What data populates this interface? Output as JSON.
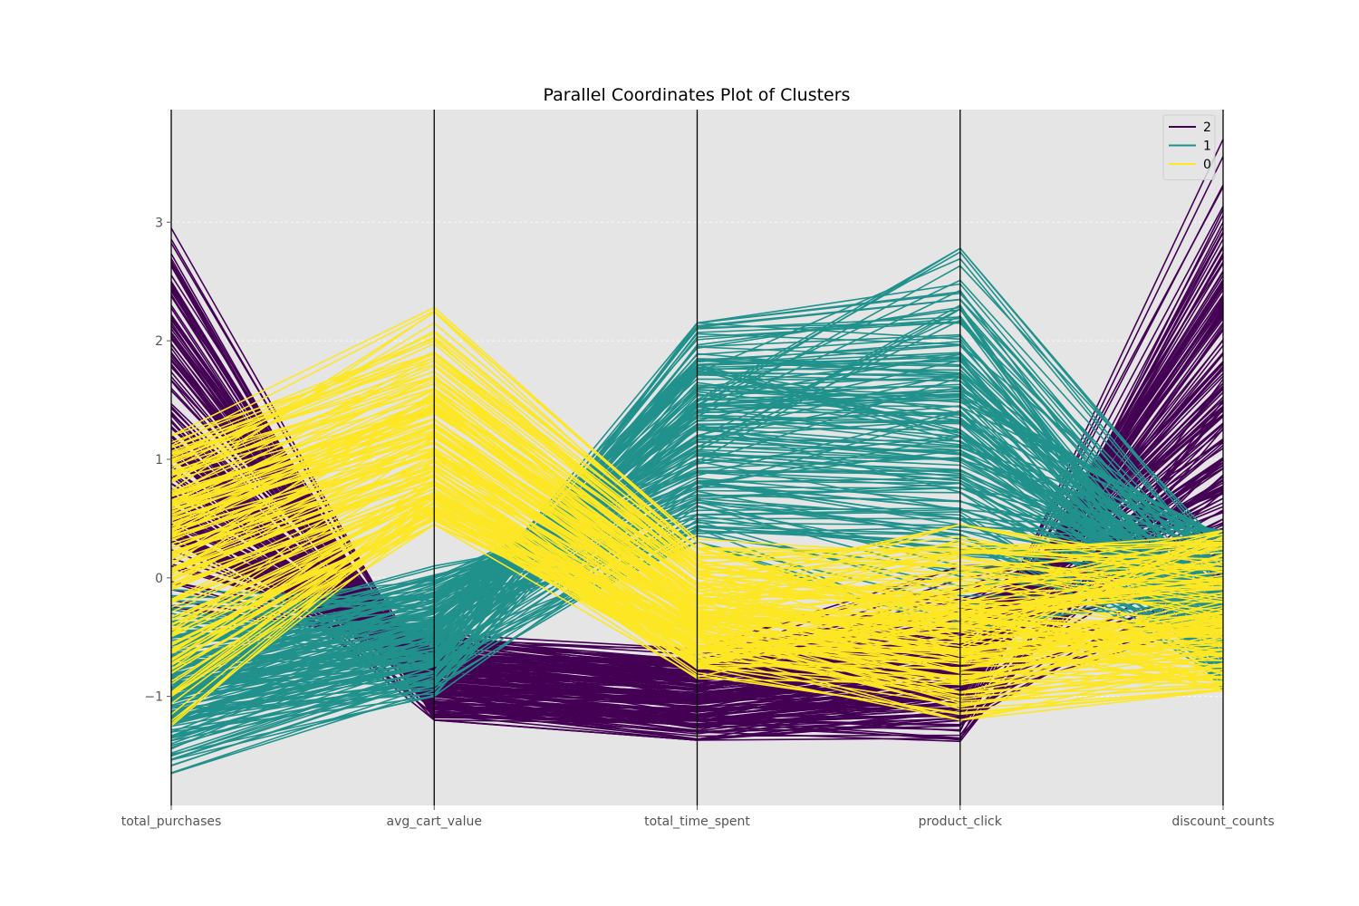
{
  "chart_data": {
    "type": "line",
    "subtype": "parallel-coordinates",
    "title": "Parallel Coordinates Plot of Clusters",
    "xlabel": "",
    "ylabel": "",
    "categories": [
      "total_purchases",
      "avg_cart_value",
      "total_time_spent",
      "product_click",
      "discount_counts"
    ],
    "yticks": [
      -1,
      0,
      1,
      2,
      3
    ],
    "ylim": [
      -1.92,
      3.95
    ],
    "grid": true,
    "legend": {
      "placement": "top-right",
      "entries": [
        "2",
        "1",
        "0"
      ]
    },
    "colors": {
      "2": "#440154",
      "1": "#21918c",
      "0": "#fde725",
      "axis": "#000000",
      "background": "#e5e5e5",
      "grid": "#ffffff"
    },
    "series": [
      {
        "name": "2",
        "color": "#440154",
        "approx_range": [
          [
            -0.25,
            2.95
          ],
          [
            -1.2,
            -0.45
          ],
          [
            -1.37,
            -0.6
          ],
          [
            -1.38,
            0.1
          ],
          [
            -0.35,
            3.7
          ]
        ],
        "representative_lines": [
          [
            2.95,
            -0.95,
            -1.2,
            -1.0,
            3.7
          ],
          [
            2.65,
            -1.15,
            -1.3,
            -1.25,
            3.0
          ],
          [
            2.5,
            -1.1,
            -1.25,
            -1.1,
            2.8
          ],
          [
            2.3,
            -1.05,
            -1.2,
            -0.95,
            2.55
          ],
          [
            2.1,
            -0.9,
            -1.1,
            -0.85,
            2.35
          ],
          [
            1.9,
            -0.85,
            -1.0,
            -0.8,
            2.1
          ],
          [
            1.6,
            -0.8,
            -0.95,
            -0.7,
            1.9
          ],
          [
            1.2,
            -0.75,
            -0.9,
            -0.6,
            1.7
          ],
          [
            0.95,
            -1.0,
            -1.3,
            -1.38,
            1.45
          ],
          [
            0.7,
            -0.65,
            -0.8,
            -0.55,
            1.25
          ],
          [
            0.5,
            -0.7,
            -0.85,
            -0.5,
            1.0
          ],
          [
            0.3,
            -0.6,
            -0.75,
            -0.45,
            0.8
          ],
          [
            0.1,
            -0.55,
            -0.7,
            -0.3,
            0.6
          ],
          [
            -0.1,
            -0.5,
            -0.65,
            -0.2,
            0.35
          ],
          [
            -0.25,
            -0.55,
            -0.6,
            0.1,
            0.15
          ],
          [
            0.6,
            -1.2,
            -1.37,
            -1.2,
            0.0
          ],
          [
            0.85,
            -0.95,
            -1.15,
            -0.9,
            -0.2
          ],
          [
            1.4,
            -1.1,
            -1.2,
            -1.05,
            -0.35
          ]
        ]
      },
      {
        "name": "1",
        "color": "#21918c",
        "approx_range": [
          [
            -1.65,
            -0.1
          ],
          [
            -1.0,
            0.1
          ],
          [
            0.3,
            2.15
          ],
          [
            -0.45,
            2.78
          ],
          [
            -0.95,
            0.4
          ]
        ],
        "representative_lines": [
          [
            -1.65,
            -0.95,
            1.5,
            2.78,
            0.15
          ],
          [
            -1.5,
            -0.8,
            2.15,
            2.4,
            -0.1
          ],
          [
            -1.4,
            -0.6,
            2.1,
            2.2,
            -0.5
          ],
          [
            -1.35,
            -0.7,
            1.95,
            2.05,
            -0.75
          ],
          [
            -1.2,
            -0.5,
            1.8,
            1.9,
            -0.3
          ],
          [
            -1.1,
            -0.9,
            1.6,
            1.7,
            -0.95
          ],
          [
            -1.0,
            -0.4,
            1.5,
            1.5,
            0.35
          ],
          [
            -0.95,
            -0.3,
            1.35,
            1.3,
            -0.6
          ],
          [
            -0.85,
            -0.2,
            1.2,
            1.1,
            0.2
          ],
          [
            -0.8,
            -0.55,
            1.05,
            0.95,
            -0.05
          ],
          [
            -0.7,
            -0.1,
            0.9,
            0.8,
            -0.45
          ],
          [
            -0.6,
            0.0,
            0.7,
            0.65,
            -0.25
          ],
          [
            -0.5,
            0.1,
            0.5,
            0.5,
            0.4
          ],
          [
            -0.45,
            -0.35,
            0.4,
            0.3,
            -0.75
          ],
          [
            -0.3,
            -0.75,
            0.3,
            -0.45,
            -0.1
          ],
          [
            -0.15,
            -0.25,
            1.1,
            2.3,
            -0.9
          ],
          [
            -1.3,
            -1.0,
            0.6,
            0.2,
            0.1
          ],
          [
            -0.9,
            -0.65,
            1.75,
            1.2,
            -0.55
          ]
        ]
      },
      {
        "name": "0",
        "color": "#fde725",
        "approx_range": [
          [
            -1.25,
            1.2
          ],
          [
            0.45,
            2.3
          ],
          [
            -0.85,
            0.35
          ],
          [
            -1.2,
            0.45
          ],
          [
            -0.95,
            0.4
          ]
        ],
        "representative_lines": [
          [
            1.2,
            2.28,
            0.3,
            -0.5,
            -0.95
          ],
          [
            1.1,
            2.0,
            0.2,
            0.25,
            0.3
          ],
          [
            1.0,
            1.8,
            0.1,
            -0.2,
            -0.9
          ],
          [
            0.9,
            1.6,
            0.0,
            -0.4,
            -0.7
          ],
          [
            0.7,
            1.45,
            -0.1,
            0.45,
            0.05
          ],
          [
            0.6,
            1.3,
            -0.2,
            -0.8,
            -0.85
          ],
          [
            0.5,
            1.2,
            -0.3,
            -0.6,
            0.35
          ],
          [
            0.35,
            1.05,
            -0.4,
            -0.3,
            -0.5
          ],
          [
            0.2,
            0.95,
            -0.5,
            -1.0,
            -0.9
          ],
          [
            0.05,
            0.85,
            -0.6,
            -0.7,
            -0.3
          ],
          [
            -0.1,
            0.8,
            -0.7,
            -0.5,
            0.2
          ],
          [
            -0.25,
            0.7,
            -0.8,
            -1.15,
            -0.95
          ],
          [
            -0.4,
            0.6,
            -0.85,
            -0.9,
            -0.6
          ],
          [
            -0.6,
            0.55,
            -0.75,
            -0.25,
            -0.05
          ],
          [
            -0.8,
            0.5,
            -0.65,
            -1.2,
            -0.8
          ],
          [
            -1.0,
            0.45,
            -0.55,
            0.0,
            0.4
          ],
          [
            -1.25,
            0.65,
            -0.45,
            -0.85,
            -0.4
          ],
          [
            0.8,
            2.15,
            0.25,
            0.1,
            -0.2
          ]
        ]
      }
    ]
  }
}
